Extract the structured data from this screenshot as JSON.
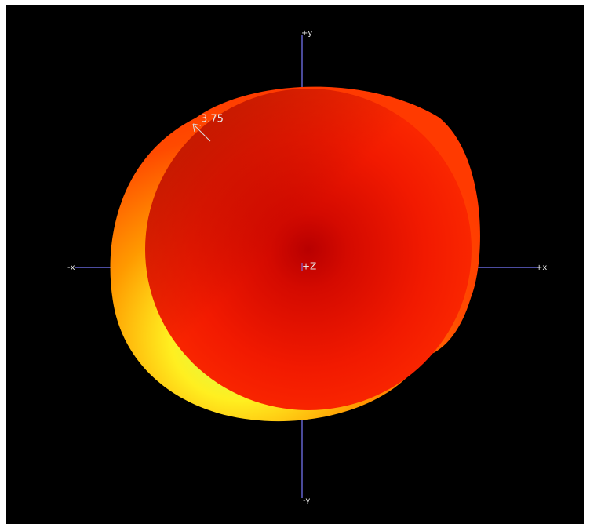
{
  "axes": {
    "plus_y": "+y",
    "minus_y": "-y",
    "minus_x": "-x",
    "plus_x": "+x",
    "plus_z": "+Z"
  },
  "annotation": "3.75"
}
